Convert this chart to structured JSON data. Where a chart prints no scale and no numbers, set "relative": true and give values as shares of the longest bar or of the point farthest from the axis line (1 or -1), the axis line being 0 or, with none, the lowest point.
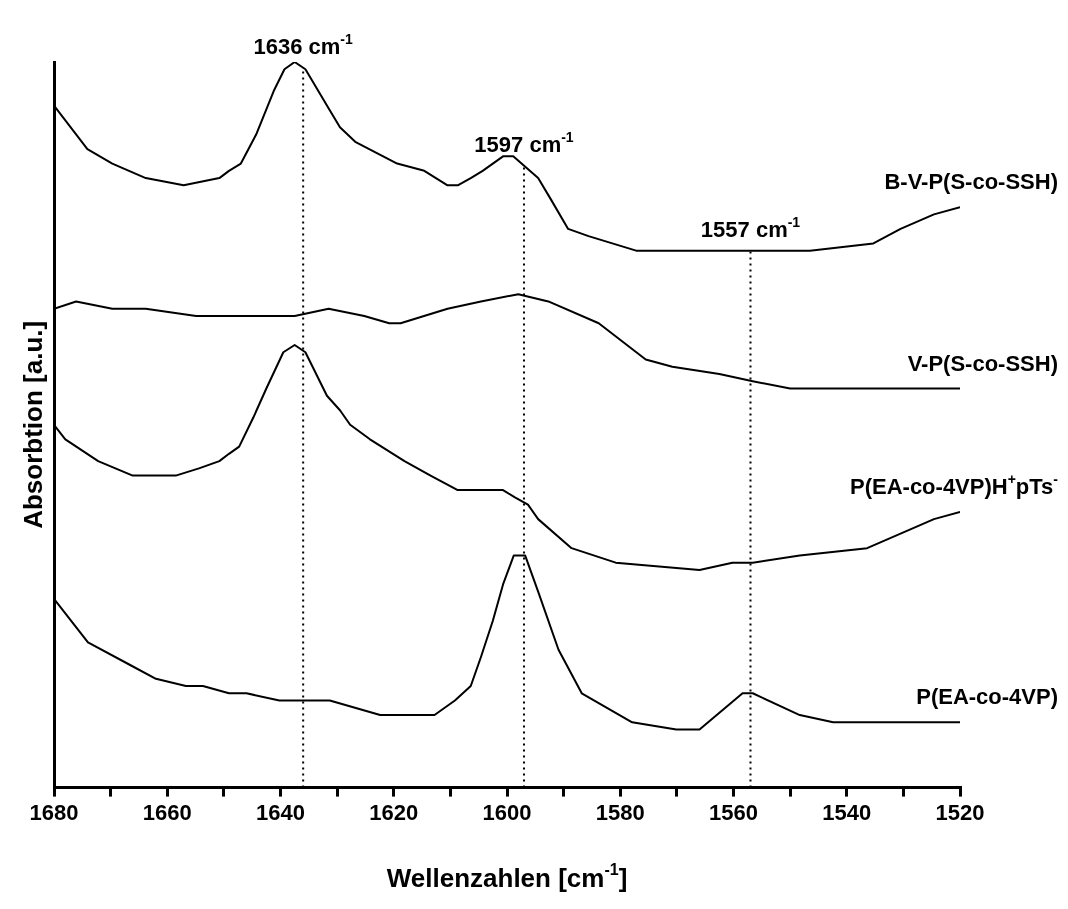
{
  "chart_data": {
    "type": "line",
    "xlabel": "Wellenzahlen [cm$^{-1}$]",
    "ylabel": "Absorbtion [a.u.]",
    "relative": true,
    "xlim": [
      1680,
      1520
    ],
    "xticks": [
      1680,
      {
        "value": 1670,
        "label": null
      },
      1660,
      {
        "value": 1650,
        "label": null
      },
      1640,
      {
        "value": 1630,
        "label": null
      },
      1620,
      {
        "value": 1610,
        "label": null
      },
      1600,
      {
        "value": 1590,
        "label": null
      },
      1580,
      {
        "value": 1570,
        "label": null
      },
      1560,
      {
        "value": 1550,
        "label": null
      },
      1540,
      {
        "value": 1530,
        "label": null
      },
      1520
    ],
    "tick_labels": "x",
    "legend": false,
    "marker": "none",
    "line_style": "solid",
    "series": [
      {
        "name": "B-V-P(S-co-SSH)",
        "color": "#000000",
        "x": [
          1680,
          1674.1,
          1669.7,
          1663.8,
          1657.1,
          1650.8,
          1649.1,
          1647,
          1644.3,
          1641.2,
          1639.3,
          1637.5,
          1635.6,
          1631.8,
          1629.5,
          1626.8,
          1619.4,
          1614.6,
          1610.5,
          1608.7,
          1606.4,
          1604.3,
          1600.7,
          1598.9,
          1594.5,
          1592.2,
          1589.2,
          1585.6,
          1577.2,
          1564.3,
          1557.7,
          1551.3,
          1546.5,
          1535.3,
          1530.5,
          1524.6,
          1520
        ],
        "values": [
          0.94,
          0.88,
          0.86,
          0.84,
          0.83,
          0.84,
          0.85,
          0.86,
          0.9,
          0.96,
          0.99,
          1,
          0.99,
          0.94,
          0.91,
          0.89,
          0.86,
          0.85,
          0.83,
          0.83,
          0.84,
          0.85,
          0.87,
          0.87,
          0.84,
          0.81,
          0.77,
          0.76,
          0.74,
          0.74,
          0.74,
          0.74,
          0.74,
          0.75,
          0.77,
          0.79,
          0.8
        ]
      },
      {
        "name": "V-P(S-co-SSH)",
        "color": "#000000",
        "x": [
          1680,
          1676.1,
          1669.7,
          1663.8,
          1654.9,
          1643.7,
          1637.5,
          1631.5,
          1625.2,
          1620.8,
          1618.8,
          1610.5,
          1604.6,
          1598,
          1592.7,
          1583.8,
          1575.5,
          1570.8,
          1562.5,
          1556.6,
          1550,
          1537.6,
          1520
        ],
        "values": [
          0.66,
          0.67,
          0.66,
          0.66,
          0.65,
          0.65,
          0.65,
          0.66,
          0.65,
          0.64,
          0.64,
          0.66,
          0.67,
          0.68,
          0.67,
          0.64,
          0.59,
          0.58,
          0.57,
          0.56,
          0.55,
          0.55,
          0.55
        ]
      },
      {
        "name": "P(EA-co-4VP)H$^{+}$pTs$^{-}$",
        "color": "#000000",
        "x": [
          1680,
          1678,
          1672.2,
          1666.1,
          1662.6,
          1658.5,
          1654.4,
          1650.8,
          1649.1,
          1647.3,
          1644.8,
          1642.5,
          1639.5,
          1637.5,
          1635.6,
          1631.8,
          1629.5,
          1627.7,
          1624.2,
          1618.1,
          1613.5,
          1608.7,
          1606,
          1602.8,
          1600.7,
          1598.6,
          1596.3,
          1594.5,
          1588.6,
          1580.8,
          1566,
          1560.2,
          1556.6,
          1548.3,
          1536.4,
          1530.5,
          1524.6,
          1520
        ],
        "values": [
          0.5,
          0.48,
          0.45,
          0.43,
          0.43,
          0.43,
          0.44,
          0.45,
          0.46,
          0.47,
          0.51,
          0.55,
          0.6,
          0.61,
          0.6,
          0.54,
          0.52,
          0.5,
          0.48,
          0.45,
          0.43,
          0.41,
          0.41,
          0.41,
          0.41,
          0.4,
          0.39,
          0.37,
          0.33,
          0.31,
          0.3,
          0.31,
          0.31,
          0.32,
          0.33,
          0.35,
          0.37,
          0.38
        ]
      },
      {
        "name": "P(EA-co-4VP)",
        "color": "#000000",
        "x": [
          1680,
          1674,
          1666.8,
          1662,
          1656.7,
          1653.7,
          1649.1,
          1646,
          1640.2,
          1637.5,
          1631.3,
          1622.4,
          1617.6,
          1612.8,
          1609.2,
          1606.4,
          1604.6,
          1602.5,
          1600.7,
          1598.8,
          1596.8,
          1594.5,
          1590.9,
          1586.8,
          1577.9,
          1570.1,
          1566,
          1558.4,
          1556.6,
          1548.3,
          1542.4,
          1520
        ],
        "values": [
          0.26,
          0.2,
          0.17,
          0.15,
          0.14,
          0.14,
          0.13,
          0.13,
          0.12,
          0.12,
          0.12,
          0.1,
          0.1,
          0.1,
          0.12,
          0.14,
          0.18,
          0.23,
          0.28,
          0.32,
          0.32,
          0.27,
          0.19,
          0.13,
          0.09,
          0.08,
          0.08,
          0.13,
          0.13,
          0.1,
          0.09,
          0.09
        ]
      }
    ],
    "ref_lines": [
      {
        "axis": "x",
        "value": 1636,
        "label": "1636 cm$^{-1}$",
        "line_style": "dotted",
        "color": "#000000"
      },
      {
        "axis": "x",
        "value": 1597,
        "label": "1597 cm$^{-1}$",
        "line_style": "dotted",
        "color": "#000000"
      },
      {
        "axis": "x",
        "value": 1557,
        "label": "1557 cm$^{-1}$",
        "line_style": "dotted",
        "color": "#000000"
      }
    ]
  }
}
